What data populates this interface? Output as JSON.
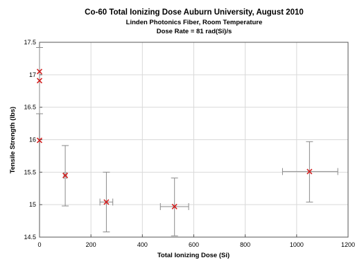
{
  "chart_data": {
    "type": "scatter",
    "title": "Co-60 Total Ionizing Dose Auburn University, August 2010",
    "subtitle_lines": [
      "Linden Photonics Fiber, Room Temperature",
      "Dose Rate = 81 rad(Si)/s"
    ],
    "xlabel": "Total Ionizing Dose (Si)",
    "ylabel": "Tensile Strength (lbs)",
    "xlim": [
      0,
      1200
    ],
    "ylim": [
      14.5,
      17.5
    ],
    "xticks": [
      0,
      200,
      400,
      600,
      800,
      1000,
      1200
    ],
    "yticks": [
      14.5,
      15,
      15.5,
      16,
      16.5,
      17,
      17.5
    ],
    "ytick_labels": [
      "14.5",
      "15",
      "15.5",
      "16",
      "16.5",
      "17",
      "17.5"
    ],
    "grid": true,
    "marker": "x",
    "colors": {
      "marker": "#d42020",
      "errorbar": "#8a8a8a",
      "grid": "#d9d9d9"
    },
    "points": [
      {
        "x": 0,
        "y": 17.05,
        "y_err": [
          16.4,
          17.42
        ],
        "x_err": null
      },
      {
        "x": 0,
        "y": 16.91,
        "y_err": null,
        "x_err": null
      },
      {
        "x": 0,
        "y": 15.99,
        "y_err": null,
        "x_err": null
      },
      {
        "x": 100,
        "y": 15.45,
        "y_err": [
          14.98,
          15.91
        ],
        "x_err": [
          95,
          105
        ]
      },
      {
        "x": 260,
        "y": 15.04,
        "y_err": [
          14.58,
          15.5
        ],
        "x_err": [
          235,
          285
        ]
      },
      {
        "x": 525,
        "y": 14.97,
        "y_err": [
          14.52,
          15.41
        ],
        "x_err": [
          470,
          580
        ]
      },
      {
        "x": 1050,
        "y": 15.51,
        "y_err": [
          15.04,
          15.97
        ],
        "x_err": [
          945,
          1160
        ]
      }
    ]
  }
}
